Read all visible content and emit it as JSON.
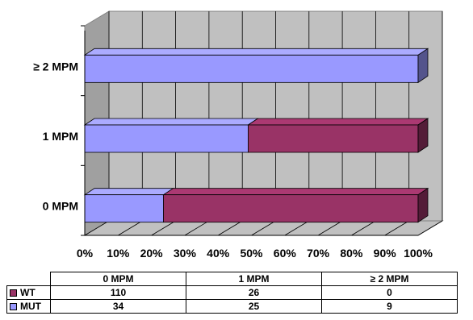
{
  "chart_data": {
    "type": "bar",
    "orientation": "horizontal",
    "stacked": "percent",
    "style": "3d",
    "categories": [
      "0 MPM",
      "1 MPM",
      "≥ 2 MPM"
    ],
    "series": [
      {
        "name": "MUT",
        "values": [
          34,
          25,
          9
        ],
        "color": "#9999ff"
      },
      {
        "name": "WT",
        "values": [
          110,
          26,
          0
        ],
        "color": "#993366"
      }
    ],
    "x_ticks": [
      "0%",
      "10%",
      "20%",
      "30%",
      "40%",
      "50%",
      "60%",
      "70%",
      "80%",
      "90%",
      "100%"
    ],
    "xlim": [
      0,
      100
    ],
    "grid": true,
    "legend": "data-table"
  },
  "table": {
    "headers": [
      "0 MPM",
      "1 MPM",
      "≥ 2 MPM"
    ],
    "rows": [
      {
        "label": "WT",
        "values": [
          "110",
          "26",
          "0"
        ],
        "color": "#993366"
      },
      {
        "label": "MUT",
        "values": [
          "34",
          "25",
          "9"
        ],
        "color": "#9999ff"
      }
    ]
  }
}
